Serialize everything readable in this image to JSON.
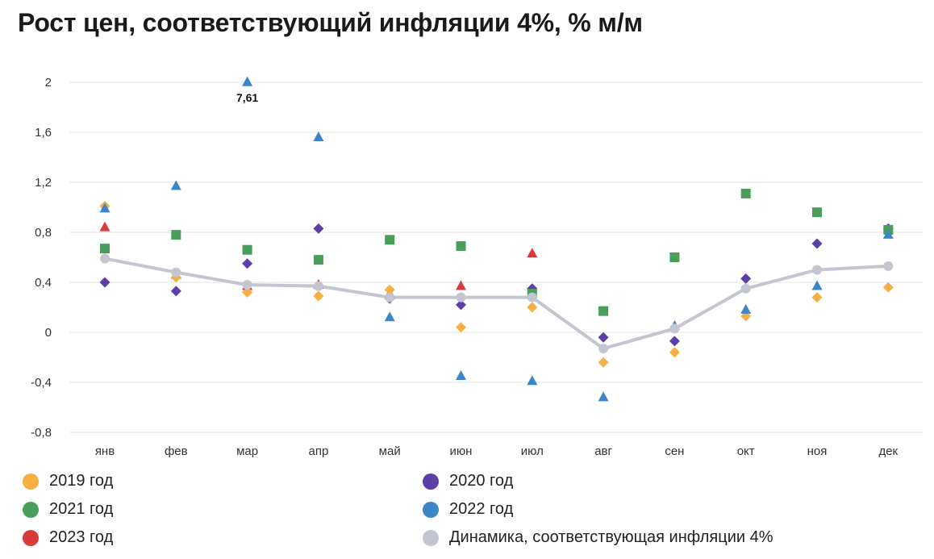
{
  "title": "Рост цен, соответствующий инфляции 4%, % м/м",
  "chart_data": {
    "type": "scatter",
    "title": "Рост цен, соответствующий инфляции 4%, % м/м",
    "xlabel": "",
    "ylabel": "",
    "categories": [
      "янв",
      "фев",
      "мар",
      "апр",
      "май",
      "июн",
      "июл",
      "авг",
      "сен",
      "окт",
      "ноя",
      "дек"
    ],
    "ylim": [
      -0.8,
      2.0
    ],
    "yticks": [
      2,
      1.6,
      1.2,
      0.8,
      0.4,
      0,
      -0.4,
      -0.8
    ],
    "ytick_labels": [
      "2",
      "1,6",
      "1,2",
      "0,8",
      "0,4",
      "0",
      "-0,4",
      "-0,8"
    ],
    "grid": true,
    "legend_position": "bottom",
    "series": [
      {
        "name": "2019 год",
        "marker": "diamond",
        "color": "#f5b041",
        "values": [
          1.01,
          0.44,
          0.32,
          0.29,
          0.34,
          0.04,
          0.2,
          -0.24,
          -0.16,
          0.13,
          0.28,
          0.36
        ]
      },
      {
        "name": "2020 год",
        "marker": "diamond",
        "color": "#5b3ea6",
        "values": [
          0.4,
          0.33,
          0.55,
          0.83,
          0.27,
          0.22,
          0.35,
          -0.04,
          -0.07,
          0.43,
          0.71,
          0.83
        ]
      },
      {
        "name": "2021 год",
        "marker": "square",
        "color": "#4a9e5c",
        "values": [
          0.67,
          0.78,
          0.66,
          0.58,
          0.74,
          0.69,
          0.31,
          0.17,
          0.6,
          1.11,
          0.96,
          0.82
        ]
      },
      {
        "name": "2022 год",
        "marker": "triangle",
        "color": "#3a86c8",
        "values": [
          0.99,
          1.17,
          2.0,
          1.56,
          0.12,
          -0.35,
          -0.39,
          -0.52,
          0.05,
          0.18,
          0.37,
          0.78
        ]
      },
      {
        "name": "2023 год",
        "marker": "triangle",
        "color": "#d93b3b",
        "values": [
          0.84,
          0.46,
          0.37,
          0.38,
          0.31,
          0.37,
          0.63,
          null,
          null,
          null,
          null,
          null
        ]
      },
      {
        "name": "Динамика, соответствующая инфляции 4%",
        "marker": "line",
        "color": "#c3c5d0",
        "values": [
          0.59,
          0.48,
          0.38,
          0.37,
          0.28,
          0.28,
          0.28,
          -0.13,
          0.03,
          0.35,
          0.5,
          0.53
        ]
      }
    ],
    "annotations": [
      {
        "category": "мар",
        "series": "2022 год",
        "value": 7.61,
        "text": "7,61"
      }
    ]
  },
  "legend": [
    {
      "label": "2019 год",
      "color": "#f5b041"
    },
    {
      "label": "2020 год",
      "color": "#5b3ea6"
    },
    {
      "label": "2021 год",
      "color": "#4a9e5c"
    },
    {
      "label": "2022 год",
      "color": "#3a86c8"
    },
    {
      "label": "2023 год",
      "color": "#d93b3b"
    },
    {
      "label": "Динамика, соответствующая инфляции 4%",
      "color": "#c3c5d0"
    }
  ]
}
